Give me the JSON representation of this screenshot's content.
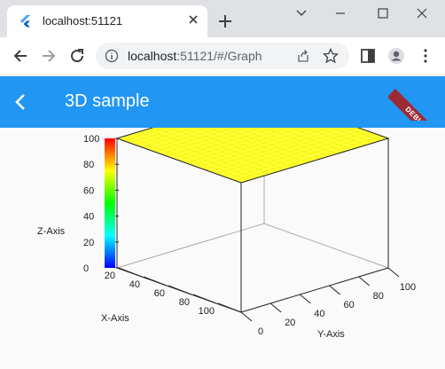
{
  "browser": {
    "tab_title": "localhost:51121",
    "url_host": "localhost",
    "url_rest": ":51121/#/Graph"
  },
  "app": {
    "title": "3D sample",
    "debug_label": "DEBUG",
    "accent": "#2196f3"
  },
  "chart_data": {
    "type": "surface",
    "x_axis": {
      "label": "X-Axis",
      "ticks": [
        "20",
        "40",
        "60",
        "80",
        "100"
      ]
    },
    "y_axis": {
      "label": "Y-Axis",
      "ticks": [
        "0",
        "20",
        "40",
        "60",
        "80",
        "100"
      ]
    },
    "z_axis": {
      "label": "Z-Axis",
      "ticks": [
        "0",
        "20",
        "40",
        "60",
        "80",
        "100"
      ]
    },
    "x_range": [
      0,
      100
    ],
    "y_range": [
      0,
      100
    ],
    "z_range": [
      0,
      100
    ],
    "surface_z": 100,
    "surface_color": "#ffff33",
    "colorbar": [
      "#0000ff",
      "#00ffff",
      "#00ff00",
      "#ffff00",
      "#ff0000"
    ]
  }
}
